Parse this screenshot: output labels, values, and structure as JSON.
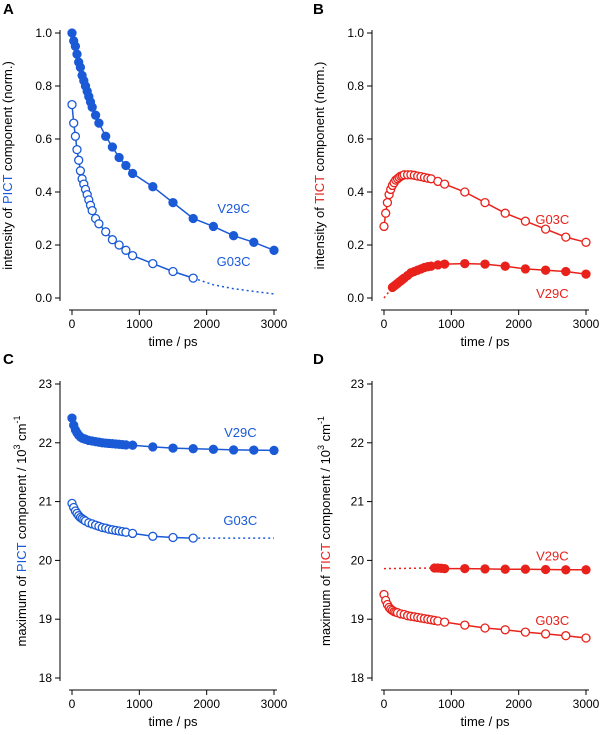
{
  "colors": {
    "pict": "#1a5ad7",
    "tict": "#e8221b",
    "axis": "#000000"
  },
  "chart_data": [
    {
      "panel_label": "A",
      "type": "scatter",
      "xlabel": "time / ps",
      "ylabel_parts": [
        "intensity of ",
        "PICT",
        " component (norm.)"
      ],
      "xlim": [
        0,
        3000
      ],
      "ylim": [
        0,
        1.0
      ],
      "xticks": [
        0,
        1000,
        2000,
        3000
      ],
      "xtick_labels": [
        "0",
        "1000",
        "2000",
        "3000"
      ],
      "yticks": [
        0,
        0.2,
        0.4,
        0.6,
        0.8,
        1.0
      ],
      "ytick_labels": [
        "0.0",
        "0.2",
        "0.4",
        "0.6",
        "0.8",
        "1.0"
      ],
      "series": [
        {
          "name": "V29C",
          "color_key": "pict",
          "filled": true,
          "label_x": 2400,
          "label_y": 0.32,
          "x": [
            0,
            25,
            50,
            75,
            100,
            125,
            150,
            175,
            200,
            225,
            250,
            275,
            300,
            350,
            400,
            500,
            600,
            700,
            800,
            900,
            1200,
            1500,
            1800,
            2100,
            2400,
            2700,
            3000
          ],
          "y": [
            1.0,
            0.97,
            0.95,
            0.92,
            0.89,
            0.87,
            0.84,
            0.82,
            0.8,
            0.78,
            0.76,
            0.74,
            0.72,
            0.69,
            0.66,
            0.61,
            0.57,
            0.53,
            0.5,
            0.47,
            0.42,
            0.36,
            0.3,
            0.27,
            0.235,
            0.21,
            0.18
          ],
          "fit_end": 3000
        },
        {
          "name": "G03C",
          "color_key": "pict",
          "filled": false,
          "label_x": 2400,
          "label_y": 0.12,
          "x": [
            0,
            25,
            50,
            75,
            100,
            125,
            150,
            175,
            200,
            225,
            250,
            275,
            300,
            350,
            400,
            500,
            600,
            700,
            800,
            900,
            1200,
            1500,
            1800
          ],
          "y": [
            0.73,
            0.66,
            0.61,
            0.56,
            0.52,
            0.48,
            0.45,
            0.43,
            0.41,
            0.39,
            0.37,
            0.35,
            0.33,
            0.3,
            0.28,
            0.25,
            0.22,
            0.2,
            0.18,
            0.16,
            0.13,
            0.1,
            0.075
          ],
          "fit_end": 1800,
          "dotted_x": [
            1800,
            2100,
            2400,
            2700,
            3000
          ],
          "dotted_y": [
            0.075,
            0.05,
            0.035,
            0.025,
            0.015
          ]
        }
      ]
    },
    {
      "panel_label": "B",
      "type": "scatter",
      "xlabel": "time / ps",
      "ylabel_parts": [
        "intensity of ",
        "TICT",
        " component (norm.)"
      ],
      "xlim": [
        0,
        3000
      ],
      "ylim": [
        0,
        1.0
      ],
      "xticks": [
        0,
        1000,
        2000,
        3000
      ],
      "xtick_labels": [
        "0",
        "1000",
        "2000",
        "3000"
      ],
      "yticks": [
        0,
        0.2,
        0.4,
        0.6,
        0.8,
        1.0
      ],
      "ytick_labels": [
        "0.0",
        "0.2",
        "0.4",
        "0.6",
        "0.8",
        "1.0"
      ],
      "series": [
        {
          "name": "G03C",
          "color_key": "tict",
          "filled": false,
          "label_x": 2500,
          "label_y": 0.28,
          "x": [
            0,
            25,
            50,
            75,
            100,
            125,
            150,
            175,
            200,
            225,
            250,
            275,
            300,
            350,
            400,
            450,
            500,
            550,
            600,
            650,
            700,
            800,
            900,
            1200,
            1500,
            1800,
            2100,
            2400,
            2700,
            3000
          ],
          "y": [
            0.27,
            0.32,
            0.36,
            0.39,
            0.41,
            0.425,
            0.435,
            0.445,
            0.45,
            0.455,
            0.46,
            0.462,
            0.465,
            0.465,
            0.465,
            0.463,
            0.46,
            0.458,
            0.455,
            0.452,
            0.45,
            0.44,
            0.43,
            0.4,
            0.36,
            0.32,
            0.29,
            0.26,
            0.23,
            0.21
          ],
          "fit_end": 3000
        },
        {
          "name": "V29C",
          "color_key": "tict",
          "filled": true,
          "label_x": 2500,
          "label_y": 0.0,
          "x": [
            125,
            150,
            175,
            200,
            225,
            250,
            275,
            300,
            350,
            400,
            450,
            500,
            550,
            600,
            650,
            700,
            800,
            900,
            1200,
            1500,
            1800,
            2100,
            2400,
            2700,
            3000
          ],
          "y": [
            0.04,
            0.045,
            0.05,
            0.055,
            0.06,
            0.065,
            0.07,
            0.075,
            0.085,
            0.095,
            0.1,
            0.105,
            0.11,
            0.115,
            0.118,
            0.12,
            0.125,
            0.128,
            0.13,
            0.128,
            0.12,
            0.11,
            0.105,
            0.1,
            0.09
          ],
          "fit_end": 3000,
          "dotted_x": [
            0,
            125
          ],
          "dotted_y": [
            0,
            0.04
          ]
        }
      ]
    },
    {
      "panel_label": "C",
      "type": "scatter",
      "xlabel": "time / ps",
      "ylabel_parts": [
        "maximum of ",
        "PICT",
        " component / 10",
        "3",
        " cm",
        "-1"
      ],
      "xlim": [
        0,
        3000
      ],
      "ylim": [
        18,
        23
      ],
      "xticks": [
        0,
        1000,
        2000,
        3000
      ],
      "xtick_labels": [
        "0",
        "1000",
        "2000",
        "3000"
      ],
      "yticks": [
        18,
        19,
        20,
        21,
        22,
        23
      ],
      "ytick_labels": [
        "18",
        "19",
        "20",
        "21",
        "22",
        "23"
      ],
      "series": [
        {
          "name": "V29C",
          "color_key": "pict",
          "filled": true,
          "label_x": 2500,
          "label_y": 22.1,
          "x": [
            0,
            25,
            50,
            75,
            100,
            125,
            150,
            175,
            200,
            250,
            300,
            350,
            400,
            450,
            500,
            550,
            600,
            650,
            700,
            750,
            800,
            900,
            1200,
            1500,
            1800,
            2100,
            2400,
            2700,
            3000
          ],
          "y": [
            22.42,
            22.3,
            22.22,
            22.17,
            22.13,
            22.1,
            22.08,
            22.07,
            22.06,
            22.04,
            22.03,
            22.02,
            22.01,
            22.0,
            21.995,
            21.99,
            21.985,
            21.98,
            21.975,
            21.97,
            21.965,
            21.96,
            21.93,
            21.91,
            21.9,
            21.89,
            21.88,
            21.875,
            21.87
          ],
          "fit_end": 3000
        },
        {
          "name": "G03C",
          "color_key": "pict",
          "filled": false,
          "label_x": 2500,
          "label_y": 20.6,
          "x": [
            0,
            25,
            50,
            75,
            100,
            125,
            150,
            175,
            200,
            250,
            300,
            350,
            400,
            450,
            500,
            550,
            600,
            650,
            700,
            750,
            800,
            900,
            1200,
            1500,
            1800
          ],
          "y": [
            20.97,
            20.9,
            20.84,
            20.8,
            20.76,
            20.73,
            20.71,
            20.69,
            20.67,
            20.64,
            20.62,
            20.6,
            20.58,
            20.56,
            20.55,
            20.53,
            20.52,
            20.51,
            20.5,
            20.49,
            20.48,
            20.46,
            20.41,
            20.39,
            20.38
          ],
          "fit_end": 1800,
          "dotted_x": [
            1800,
            3000
          ],
          "dotted_y": [
            20.38,
            20.38
          ]
        }
      ]
    },
    {
      "panel_label": "D",
      "type": "scatter",
      "xlabel": "time / ps",
      "ylabel_parts": [
        "maximum of ",
        "TICT",
        " component / 10",
        "3",
        " cm",
        "-1"
      ],
      "xlim": [
        0,
        3000
      ],
      "ylim": [
        18,
        23
      ],
      "xticks": [
        0,
        1000,
        2000,
        3000
      ],
      "xtick_labels": [
        "0",
        "1000",
        "2000",
        "3000"
      ],
      "yticks": [
        18,
        19,
        20,
        21,
        22,
        23
      ],
      "ytick_labels": [
        "18",
        "19",
        "20",
        "21",
        "22",
        "23"
      ],
      "series": [
        {
          "name": "V29C",
          "color_key": "tict",
          "filled": true,
          "label_x": 2500,
          "label_y": 20.0,
          "x": [
            750,
            800,
            850,
            900,
            1200,
            1500,
            1800,
            2100,
            2400,
            2700,
            3000
          ],
          "y": [
            19.87,
            19.87,
            19.865,
            19.86,
            19.86,
            19.855,
            19.85,
            19.85,
            19.845,
            19.84,
            19.84
          ],
          "fit_end": 3000,
          "dotted_x": [
            0,
            750
          ],
          "dotted_y": [
            19.86,
            19.87
          ]
        },
        {
          "name": "G03C",
          "color_key": "tict",
          "filled": false,
          "label_x": 2500,
          "label_y": 18.9,
          "x": [
            0,
            25,
            50,
            75,
            100,
            125,
            150,
            175,
            200,
            250,
            300,
            350,
            400,
            450,
            500,
            550,
            600,
            650,
            700,
            750,
            800,
            900,
            1200,
            1500,
            1800,
            2100,
            2400,
            2700,
            3000
          ],
          "y": [
            19.42,
            19.32,
            19.25,
            19.2,
            19.17,
            19.15,
            19.13,
            19.12,
            19.11,
            19.09,
            19.08,
            19.06,
            19.05,
            19.04,
            19.03,
            19.02,
            19.01,
            19.0,
            18.99,
            18.98,
            18.97,
            18.95,
            18.9,
            18.85,
            18.82,
            18.78,
            18.75,
            18.72,
            18.68
          ],
          "fit_end": 3000
        }
      ]
    }
  ]
}
